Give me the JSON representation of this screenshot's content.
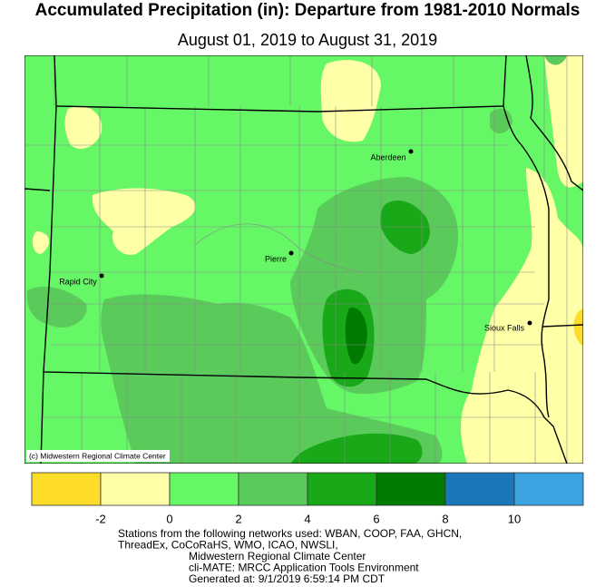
{
  "header": {
    "title": "Accumulated Precipitation (in): Departure from 1981-2010 Normals",
    "subtitle": "August 01, 2019 to August 31, 2019"
  },
  "map": {
    "cities": [
      "Aberdeen",
      "Pierre",
      "Rapid City",
      "Sioux Falls"
    ],
    "credit": "(c) Midwestern Regional Climate Center"
  },
  "legend": {
    "colors": [
      "#fddd2a",
      "#ffffa8",
      "#66f766",
      "#5acb5a",
      "#18a818",
      "#007a00",
      "#1a78b8",
      "#3aa3e0"
    ],
    "ticks": [
      -2,
      0,
      2,
      4,
      6,
      8,
      10
    ]
  },
  "footer": {
    "lines": [
      "Stations from the following networks used: WBAN, COOP, FAA, GHCN,",
      "ThreadEx, CoCoRaHS, WMO, ICAO, NWSLI,",
      "Midwestern Regional Climate Center",
      "cli-MATE: MRCC Application Tools Environment",
      "Generated at: 9/1/2019 6:59:14 PM CDT"
    ]
  }
}
